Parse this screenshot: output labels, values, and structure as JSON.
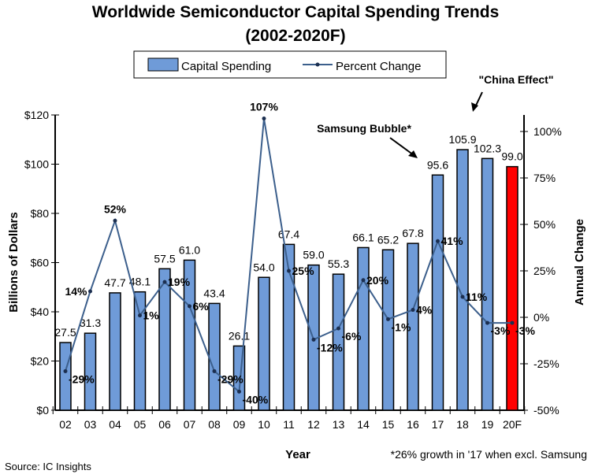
{
  "chart_data": {
    "type": "bar+line",
    "title": "Worldwide Semiconductor Capital Spending Trends",
    "subtitle": "(2002-2020F)",
    "xlabel": "Year",
    "ylabel": "Billions of Dollars",
    "y2label": "Annual Change",
    "categories": [
      "02",
      "03",
      "04",
      "05",
      "06",
      "07",
      "08",
      "09",
      "10",
      "11",
      "12",
      "13",
      "14",
      "15",
      "16",
      "17",
      "18",
      "19",
      "20F"
    ],
    "series": [
      {
        "name": "Capital Spending",
        "type": "bar",
        "axis": "left",
        "values": [
          27.5,
          31.3,
          47.7,
          48.1,
          57.5,
          61.0,
          43.4,
          26.1,
          54.0,
          67.4,
          59.0,
          55.3,
          66.1,
          65.2,
          67.8,
          95.6,
          105.9,
          102.3,
          99.0
        ],
        "labels": [
          "27.5",
          "31.3",
          "47.7",
          "48.1",
          "57.5",
          "61.0",
          "43.4",
          "26.1",
          "54.0",
          "67.4",
          "59.0",
          "55.3",
          "66.1",
          "65.2",
          "67.8",
          "95.6",
          "105.9",
          "102.3",
          "99.0"
        ]
      },
      {
        "name": "Percent Change",
        "type": "line",
        "axis": "right",
        "values": [
          -29,
          14,
          52,
          1,
          19,
          6,
          -29,
          -40,
          107,
          25,
          -12,
          -6,
          20,
          -1,
          4,
          41,
          11,
          -3,
          -3
        ],
        "labels": [
          "-29%",
          "14%",
          "52%",
          "1%",
          "19%",
          "6%",
          "-29%",
          "-40%",
          "107%",
          "25%",
          "-12%",
          "-6%",
          "20%",
          "-1%",
          "4%",
          "41%",
          "11%",
          "-3%",
          "-3%"
        ]
      }
    ],
    "ylim": [
      0,
      120
    ],
    "y2lim": [
      -50,
      110
    ],
    "yticks": [
      "$0",
      "$20",
      "$40",
      "$60",
      "$80",
      "$100",
      "$120"
    ],
    "y2ticks": [
      "-50%",
      "-25%",
      "0%",
      "25%",
      "50%",
      "75%",
      "100%"
    ],
    "legend": "top",
    "colors": {
      "bar": "#6f9bd8",
      "forecast_bar": "#ff0000",
      "line": "#3c5f8c"
    },
    "annotations": [
      "Samsung Bubble*",
      "\"China Effect\""
    ],
    "footnote": "*26% growth in '17 when excl. Samsung",
    "source": "Source: IC Insights"
  }
}
